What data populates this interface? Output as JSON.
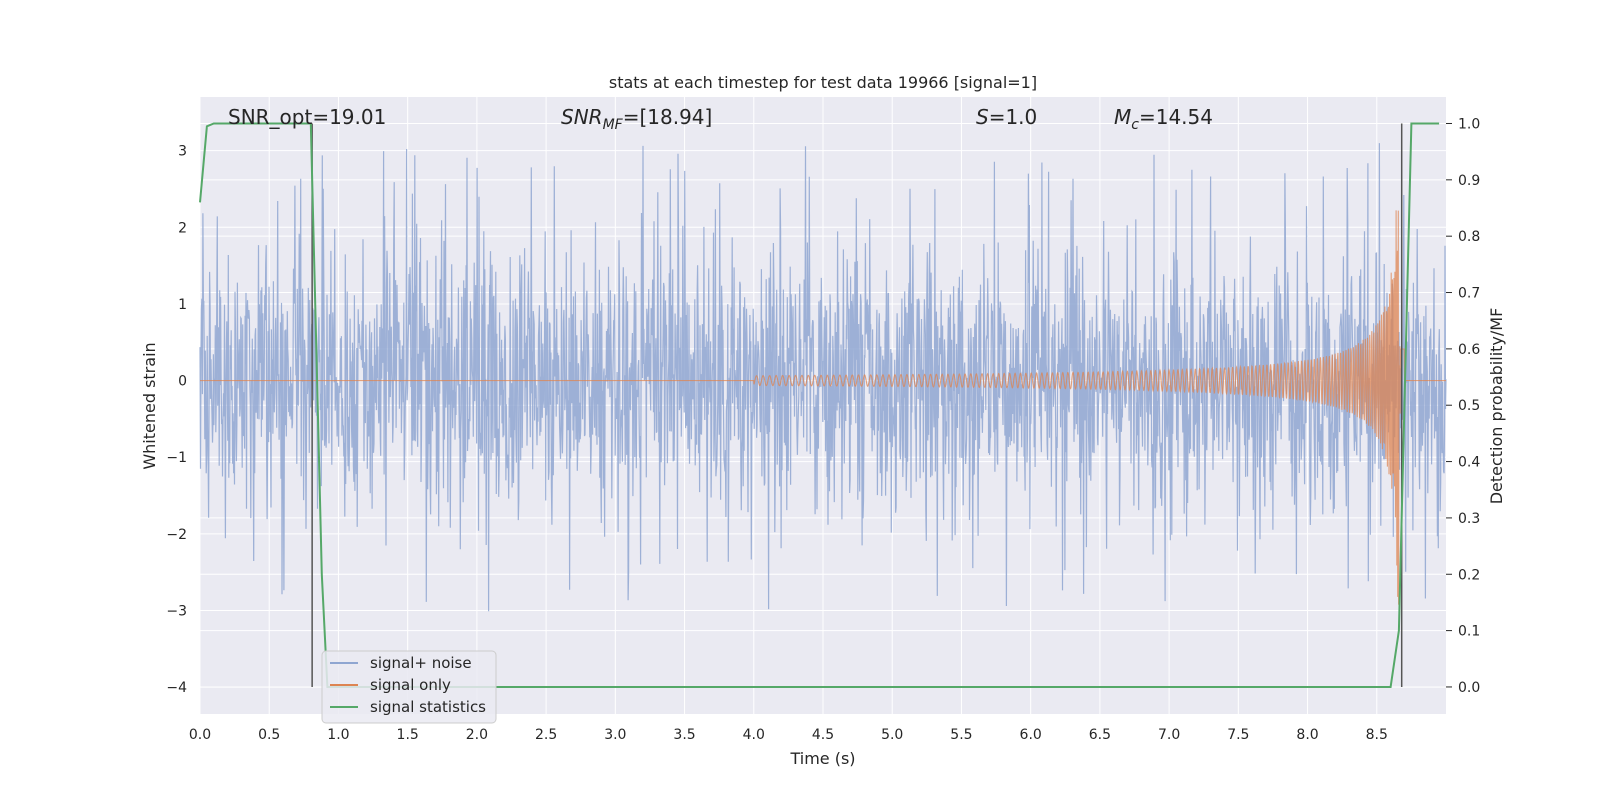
{
  "chart_data": {
    "type": "line",
    "title": "stats at each timestep for test data 19966 [signal=1]",
    "xlabel": "Time (s)",
    "ylabel": "Whitened strain",
    "y2label": "Detection probability/MF",
    "xlim": [
      0.0,
      9.0
    ],
    "ylim": [
      -4.35,
      3.7
    ],
    "y2lim": [
      -0.048,
      1.047
    ],
    "xticks": [
      "0.0",
      "0.5",
      "1.0",
      "1.5",
      "2.0",
      "2.5",
      "3.0",
      "3.5",
      "4.0",
      "4.5",
      "5.0",
      "5.5",
      "6.0",
      "6.5",
      "7.0",
      "7.5",
      "8.0",
      "8.5"
    ],
    "yticks": [
      "3",
      "2",
      "1",
      "0",
      "−1",
      "−2",
      "−3",
      "−4"
    ],
    "y2ticks": [
      "1.0",
      "0.9",
      "0.8",
      "0.7",
      "0.6",
      "0.5",
      "0.4",
      "0.3",
      "0.2",
      "0.1",
      "0.0"
    ],
    "grid": true,
    "legend_position": "lower-left",
    "annotations": {
      "snr_opt": "SNR_opt=19.01",
      "snr_mf_main": "SNR",
      "snr_mf_sub": "MF",
      "snr_mf_value": "=[18.94]",
      "s_symbol": "S",
      "s_value": "=1.0",
      "mc_symbol": "M",
      "mc_sub": "c",
      "mc_value": "=14.54"
    },
    "vlines_x": [
      0.81,
      8.68
    ],
    "series": [
      {
        "name": "signal+ noise",
        "color": "#8fa6d1",
        "axis": "left",
        "noise_sigma": 0.85,
        "peak_max": 3.35,
        "peak_min": -3.95
      },
      {
        "name": "signal only",
        "color": "#dd8452",
        "axis": "left",
        "chirp": {
          "start_time": 4.0,
          "peak_time": 8.66,
          "peak_amplitude": 3.0
        }
      },
      {
        "name": "signal statistics",
        "color": "#55a868",
        "axis": "right",
        "x": [
          0.0,
          0.05,
          0.1,
          0.8,
          0.85,
          0.88,
          0.92,
          8.6,
          8.66,
          8.72,
          8.75,
          8.95
        ],
        "y": [
          0.86,
          0.995,
          1.0,
          1.0,
          0.5,
          0.2,
          0.0,
          0.0,
          0.1,
          0.7,
          1.0,
          1.0
        ]
      }
    ]
  }
}
